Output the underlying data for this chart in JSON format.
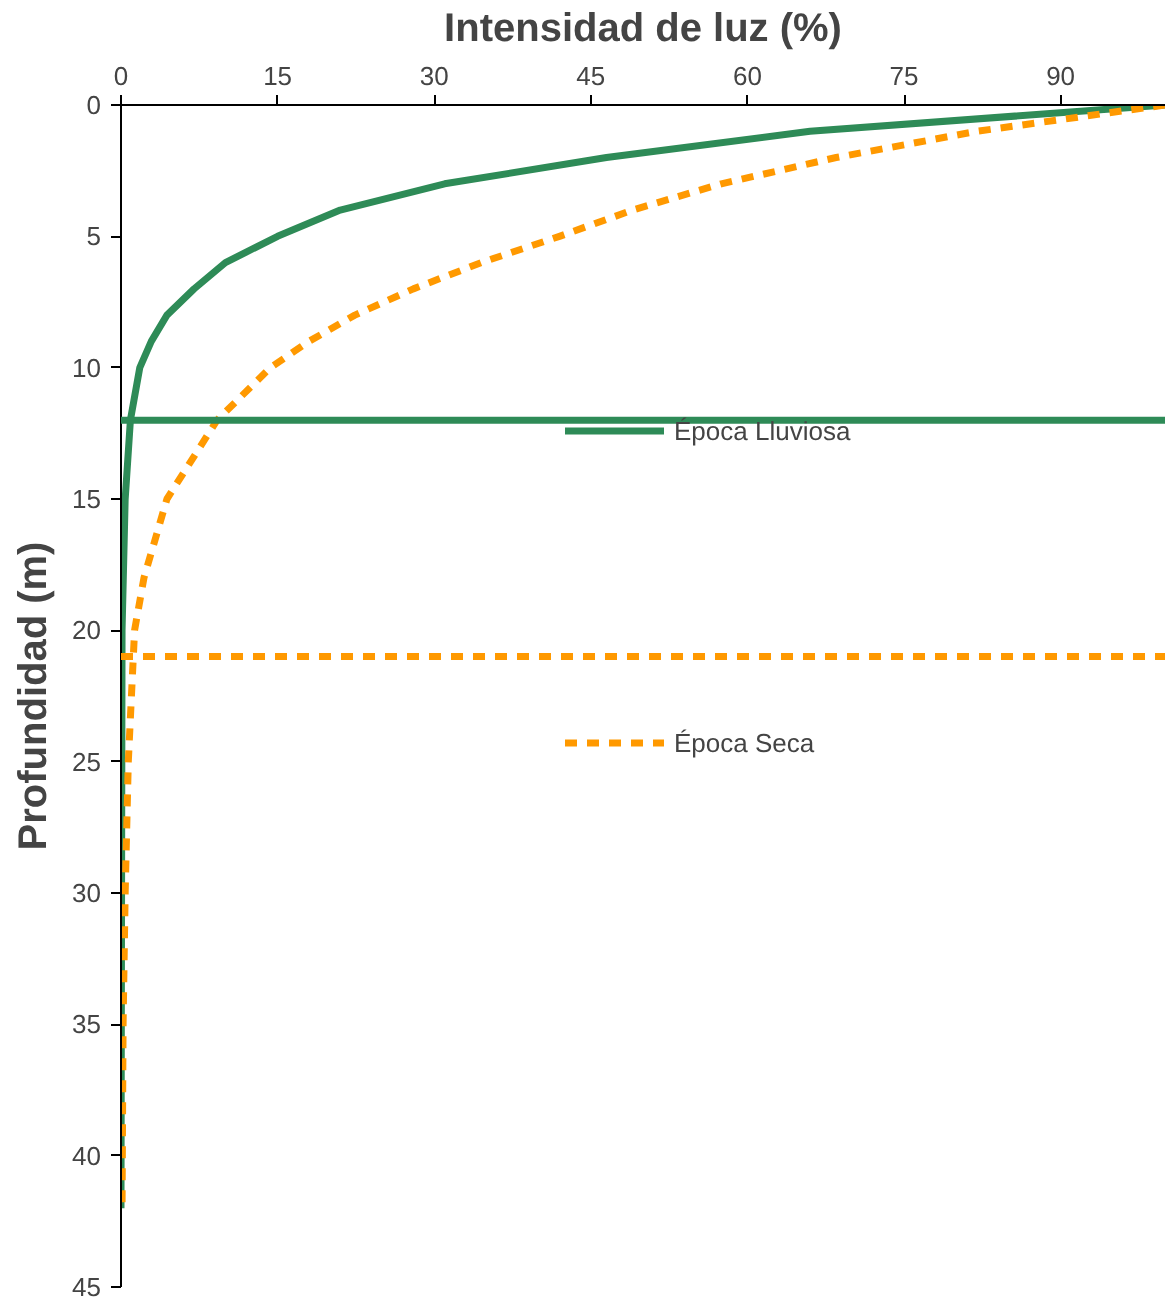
{
  "chart_data": {
    "type": "line",
    "xlabel": "Intensidad de luz (%)",
    "ylabel": "Profundidad (m)",
    "xlim": [
      0,
      100
    ],
    "xticks": [
      0,
      15,
      30,
      45,
      60,
      75,
      90
    ],
    "ylim": [
      45,
      0
    ],
    "yticks": [
      0,
      5,
      10,
      15,
      20,
      25,
      30,
      35,
      40,
      45
    ],
    "grid": false,
    "legend": "right",
    "marker": "none",
    "series": [
      {
        "name": "Época Lluviosa",
        "color": "#2e8b57",
        "line_style": "solid",
        "x": [
          100,
          66,
          46.5,
          31,
          21,
          15,
          10,
          7,
          4.4,
          2.9,
          1.8,
          0.9,
          0.4,
          0.1,
          0
        ],
        "values": [
          0,
          1,
          2,
          3,
          4,
          5,
          6,
          7,
          8,
          9,
          10,
          12,
          15,
          20,
          42
        ]
      },
      {
        "name": "Época Seca",
        "color": "#ff9900",
        "line_style": "dashed",
        "x": [
          100,
          82,
          68.5,
          57.5,
          49,
          42,
          34.5,
          28,
          22.4,
          18,
          14.3,
          9.2,
          4.4,
          2.2,
          1.3,
          0.7,
          0.4,
          0.2,
          0.1
        ],
        "values": [
          0,
          1,
          2,
          3,
          4,
          5,
          6,
          7,
          8,
          9,
          10,
          12,
          15,
          18,
          20,
          25,
          30,
          35,
          42
        ]
      }
    ],
    "ref_lines": [
      {
        "axis": "y",
        "value": 12,
        "color": "#2e8b57",
        "line_style": "solid"
      },
      {
        "axis": "y",
        "value": 21,
        "color": "#ff9900",
        "line_style": "dashed"
      }
    ]
  }
}
